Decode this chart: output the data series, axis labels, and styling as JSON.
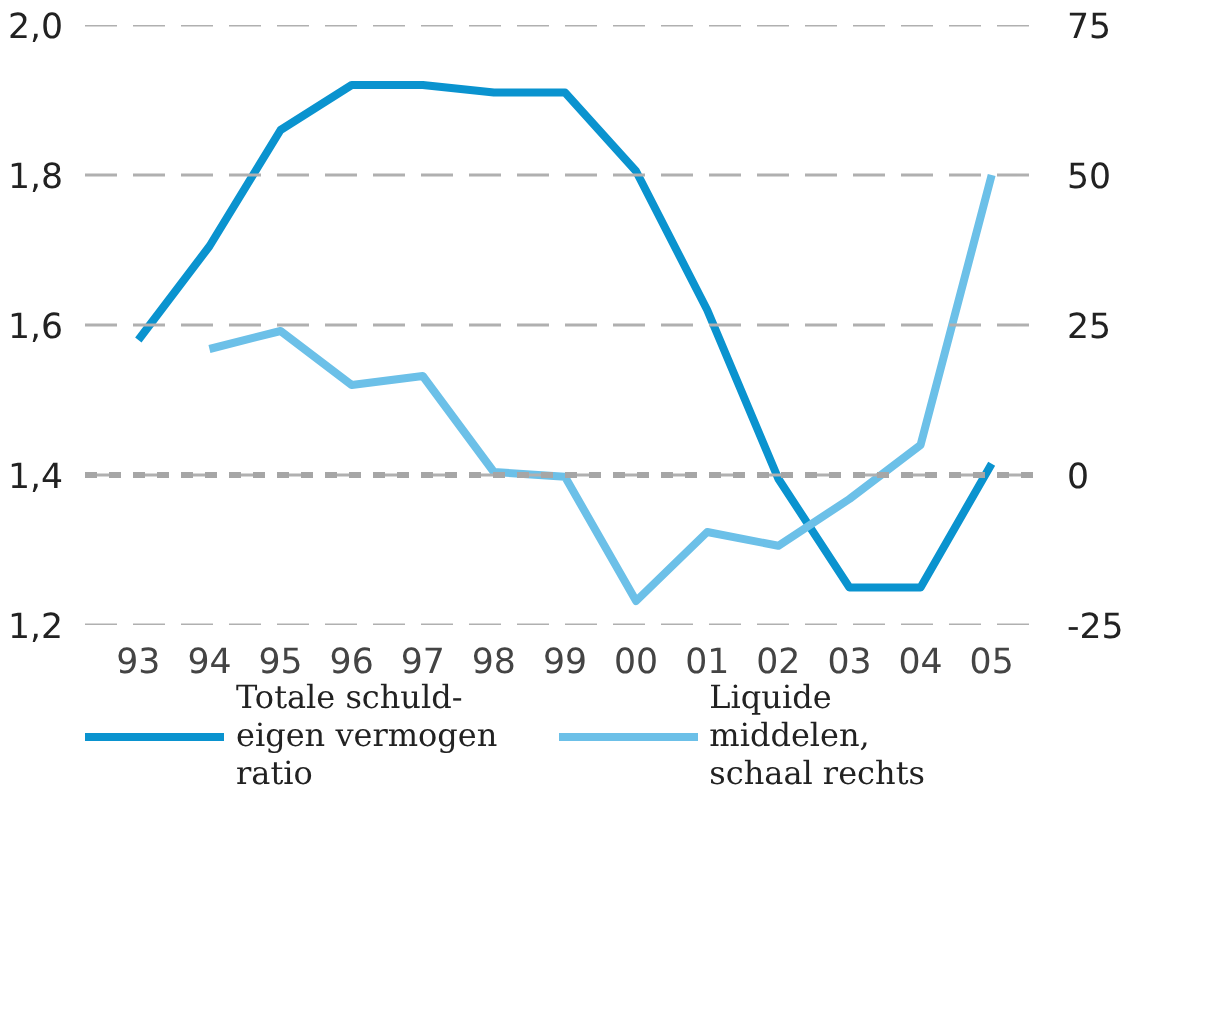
{
  "chart_data": {
    "type": "line",
    "categories": [
      "93",
      "94",
      "95",
      "96",
      "97",
      "98",
      "99",
      "00",
      "01",
      "02",
      "03",
      "04",
      "05"
    ],
    "series": [
      {
        "name": "Totale schuld-eigen vermogen ratio",
        "color": "#0a93cf",
        "values": [
          1.58,
          1.705,
          1.86,
          1.92,
          1.92,
          1.91,
          1.91,
          1.805,
          1.62,
          1.395,
          1.25,
          1.25,
          1.415
        ]
      },
      {
        "name": "Liquide middelen, schaal rechts",
        "color": "#6cc0e8",
        "axis": "y2",
        "values": [
          null,
          21,
          24,
          15,
          16.5,
          0.5,
          -0.3,
          -21,
          -9.5,
          -11.8,
          -4,
          5,
          50
        ]
      }
    ],
    "ylim": [
      1.2,
      2.0
    ],
    "yticks": [
      {
        "value": 1.2,
        "label": "1,2"
      },
      {
        "value": 1.4,
        "label": "1,4"
      },
      {
        "value": 1.6,
        "label": "1,6"
      },
      {
        "value": 1.8,
        "label": "1,8"
      },
      {
        "value": 2.0,
        "label": "2,0"
      }
    ],
    "y2lim": [
      -25,
      75
    ],
    "y2ticks": [
      -25,
      0,
      25,
      50,
      75
    ],
    "ref_lines": [
      {
        "axis": "y",
        "value": 1.4,
        "color": "#a6a6a6",
        "line_style": "dashed"
      }
    ],
    "grid": "y",
    "legend": "bottom",
    "marker": "none",
    "line_style": "solid"
  }
}
